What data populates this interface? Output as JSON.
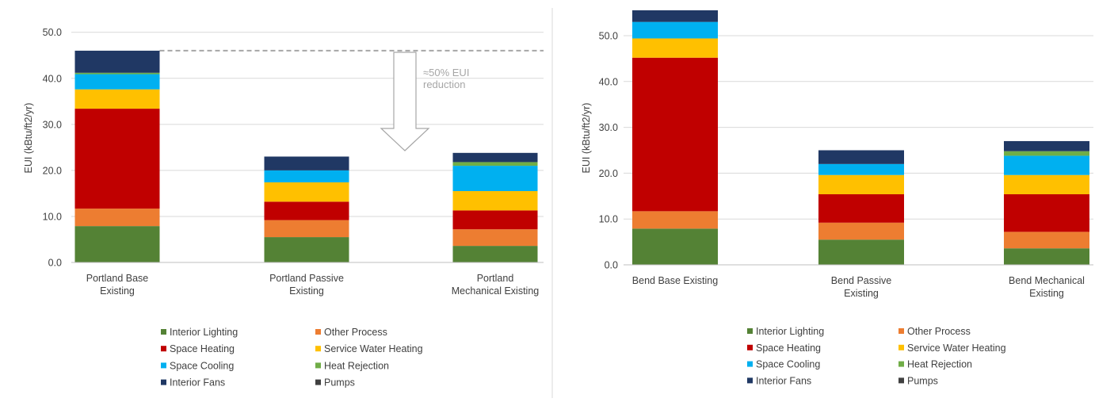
{
  "chart_data": [
    {
      "type": "bar",
      "stacked": true,
      "ylabel": "EUI (kBtu/ft2/yr)",
      "ylim": [
        0,
        50
      ],
      "yticks": [
        "0.0",
        "10.0",
        "20.0",
        "30.0",
        "40.0",
        "50.0"
      ],
      "grid": true,
      "legend_position": "bottom",
      "categories": [
        [
          "Portland Base",
          "Existing"
        ],
        [
          "Portland Passive",
          "Existing"
        ],
        [
          "Portland",
          "Mechanical Existing"
        ]
      ],
      "series": [
        {
          "name": "Interior Lighting",
          "color": "#548235",
          "values": [
            7.9,
            5.5,
            3.6
          ]
        },
        {
          "name": "Other Process",
          "color": "#ed7d31",
          "values": [
            3.8,
            3.7,
            3.6
          ]
        },
        {
          "name": "Space Heating",
          "color": "#c00000",
          "values": [
            21.7,
            4.0,
            4.1
          ]
        },
        {
          "name": "Service Water Heating",
          "color": "#ffc000",
          "values": [
            4.2,
            4.2,
            4.2
          ]
        },
        {
          "name": "Space Cooling",
          "color": "#00b0f0",
          "values": [
            3.3,
            2.6,
            5.5
          ]
        },
        {
          "name": "Heat Rejection",
          "color": "#70ad47",
          "values": [
            0.3,
            0.0,
            0.8
          ]
        },
        {
          "name": "Interior Fans",
          "color": "#203864",
          "values": [
            4.8,
            3.0,
            2.0
          ]
        },
        {
          "name": "Pumps",
          "color": "#404040",
          "values": [
            0.0,
            0.0,
            0.0
          ]
        }
      ],
      "reference_line": {
        "value": 46.0
      },
      "annotation": {
        "lines": [
          "≈50% EUI",
          "reduction"
        ]
      }
    },
    {
      "type": "bar",
      "stacked": true,
      "ylabel": "EUI (kBtu/ft2/yr)",
      "ylim": [
        0,
        55
      ],
      "yticks": [
        "0.0",
        "10.0",
        "20.0",
        "30.0",
        "40.0",
        "50.0"
      ],
      "grid": true,
      "legend_position": "bottom",
      "categories": [
        [
          "Bend Base Existing"
        ],
        [
          "Bend Passive",
          "Existing"
        ],
        [
          "Bend Mechanical",
          "Existing"
        ]
      ],
      "series": [
        {
          "name": "Interior Lighting",
          "color": "#548235",
          "values": [
            7.9,
            5.5,
            3.6
          ]
        },
        {
          "name": "Other Process",
          "color": "#ed7d31",
          "values": [
            3.8,
            3.7,
            3.6
          ]
        },
        {
          "name": "Space Heating",
          "color": "#c00000",
          "values": [
            33.5,
            6.2,
            8.2
          ]
        },
        {
          "name": "Service Water Heating",
          "color": "#ffc000",
          "values": [
            4.2,
            4.2,
            4.2
          ]
        },
        {
          "name": "Space Cooling",
          "color": "#00b0f0",
          "values": [
            3.6,
            2.4,
            4.2
          ]
        },
        {
          "name": "Heat Rejection",
          "color": "#70ad47",
          "values": [
            0.0,
            0.0,
            1.0
          ]
        },
        {
          "name": "Interior Fans",
          "color": "#203864",
          "values": [
            2.7,
            3.0,
            2.2
          ]
        },
        {
          "name": "Pumps",
          "color": "#404040",
          "values": [
            0.0,
            0.0,
            0.0
          ]
        }
      ]
    }
  ]
}
